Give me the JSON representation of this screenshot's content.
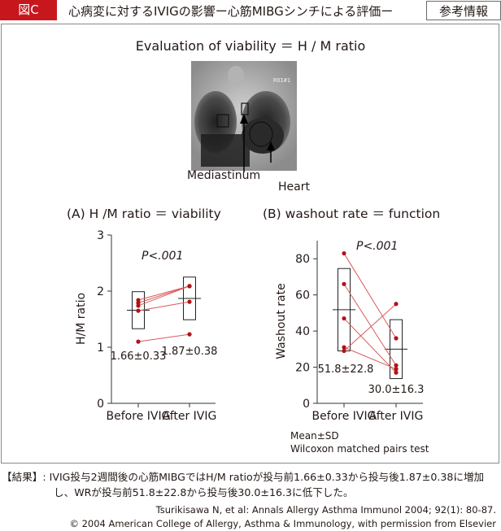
{
  "header": {
    "figure_tag": "図C",
    "title": "心病変に対するIVIGの影響ー心筋MIBGシンチによる評価ー",
    "reference_tag": "参考情報"
  },
  "figure": {
    "top_title": "Evaluation of viability ＝ H / M ratio",
    "scan_roi_label": "ROI#1",
    "label_mediastinum": "Mediastinum",
    "label_heart": "Heart"
  },
  "chart_data": [
    {
      "type": "scatter",
      "title": "(A)  H /M ratio ＝ viability",
      "xlabel": "",
      "ylabel": "H/M ratio",
      "categories": [
        "Before IVIG",
        "After IVIG"
      ],
      "ylim": [
        0,
        3
      ],
      "yticks": [
        "0",
        "1",
        "2",
        "3"
      ],
      "annotation": "P<.001",
      "pairs": [
        [
          1.84,
          2.09
        ],
        [
          1.79,
          2.09
        ],
        [
          1.74,
          2.09
        ],
        [
          1.65,
          1.81
        ],
        [
          1.1,
          1.23
        ]
      ],
      "mean": [
        1.66,
        1.87
      ],
      "sd": [
        0.33,
        0.38
      ],
      "stat_labels": [
        "1.66±0.33",
        "1.87±0.38"
      ]
    },
    {
      "type": "scatter",
      "title": "(B)  washout rate ＝ function",
      "xlabel": "",
      "ylabel": "Washout rate",
      "categories": [
        "Before IVIG",
        "After IVIG"
      ],
      "ylim": [
        0,
        90
      ],
      "yticks": [
        "0",
        "20",
        "40",
        "60",
        "80"
      ],
      "annotation": "P<.001",
      "pairs": [
        [
          83,
          36
        ],
        [
          66,
          21
        ],
        [
          47,
          17
        ],
        [
          31,
          19
        ],
        [
          29,
          55
        ]
      ],
      "mean": [
        51.8,
        30.0
      ],
      "sd": [
        22.8,
        16.3
      ],
      "stat_labels": [
        "51.8±22.8",
        "30.0±16.3"
      ],
      "footnotes": [
        "Mean±SD",
        "Wilcoxon matched pairs test"
      ]
    }
  ],
  "result": {
    "line1": "【結果】: IVIG投与2週間後の心筋MIBGではH/M ratioが投与前1.66±0.33から投与後1.87±0.38に増加",
    "line2": "し、WRが投与前51.8±22.8から投与後30.0±16.3に低下した。"
  },
  "citation": {
    "line1": "Tsurikisawa N, et al: Annals Allergy Asthma Immunol 2004; 92(1): 80-87.",
    "line2": "© 2004 American College of Allergy, Asthma & Immunology, with permission from Elsevier"
  },
  "colors": {
    "accent": "#c8161d",
    "line": "#d95b5b",
    "dot": "#b01218",
    "text": "#231815"
  }
}
